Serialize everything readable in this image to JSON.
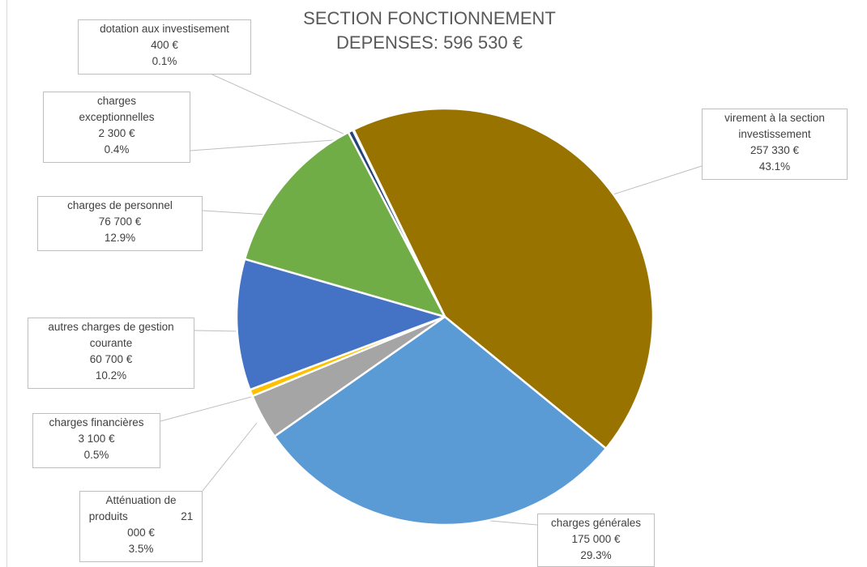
{
  "title": {
    "line1": "SECTION FONCTIONNEMENT",
    "line2": "DEPENSES: 596  530 €"
  },
  "chart_data": {
    "type": "pie",
    "title": "SECTION FONCTIONNEMENT DEPENSES: 596  530 €",
    "slices": [
      {
        "label": "virement à la section investissement",
        "value": 257330,
        "value_label": "257 330 €",
        "percent": "43.1%",
        "color": "#997300"
      },
      {
        "label": "charges générales",
        "value": 175000,
        "value_label": "175 000 €",
        "percent": "29.3%",
        "color": "#5b9bd5"
      },
      {
        "label": "Atténuation de produits",
        "value": 21000,
        "value_label": "21 000 €",
        "percent": "3.5%",
        "color": "#a5a5a5"
      },
      {
        "label": "charges financières",
        "value": 3100,
        "value_label": "3 100 €",
        "percent": "0.5%",
        "color": "#ffc000"
      },
      {
        "label": "autres charges de gestion courante",
        "value": 60700,
        "value_label": "60 700 €",
        "percent": "10.2%",
        "color": "#4472c4"
      },
      {
        "label": "charges de personnel",
        "value": 76700,
        "value_label": "76 700 €",
        "percent": "12.9%",
        "color": "#70ad47"
      },
      {
        "label": "charges exceptionnelles",
        "value": 2300,
        "value_label": "2 300 €",
        "percent": "0.4%",
        "color": "#264478"
      },
      {
        "label": "dotation aux investisement",
        "value": 400,
        "value_label": "400 €",
        "percent": "0.1%",
        "color": "#9e480e"
      }
    ]
  },
  "callouts": {
    "virement": {
      "l1": "virement à la section",
      "l2": "investissement",
      "value": "257 330 €",
      "pct": "43.1%"
    },
    "generales": {
      "l1": "charges générales",
      "value": "175 000 €",
      "pct": "29.3%"
    },
    "attenuation": {
      "l1": "Atténuation de",
      "l2a": "produits",
      "l2b": "21",
      "value": "000 €",
      "pct": "3.5%"
    },
    "financieres": {
      "l1": "charges financières",
      "value": "3 100 €",
      "pct": "0.5%"
    },
    "autres": {
      "l1": "autres charges de gestion",
      "l2": "courante",
      "value": "60 700 €",
      "pct": "10.2%"
    },
    "personnel": {
      "l1": "charges de personnel",
      "value": "76 700 €",
      "pct": "12.9%"
    },
    "exceptionnelles": {
      "l1": "charges",
      "l2": "exceptionnelles",
      "value": "2 300 €",
      "pct": "0.4%"
    },
    "dotation": {
      "l1": "dotation aux investisement",
      "value": "400 €",
      "pct": "0.1%"
    }
  }
}
